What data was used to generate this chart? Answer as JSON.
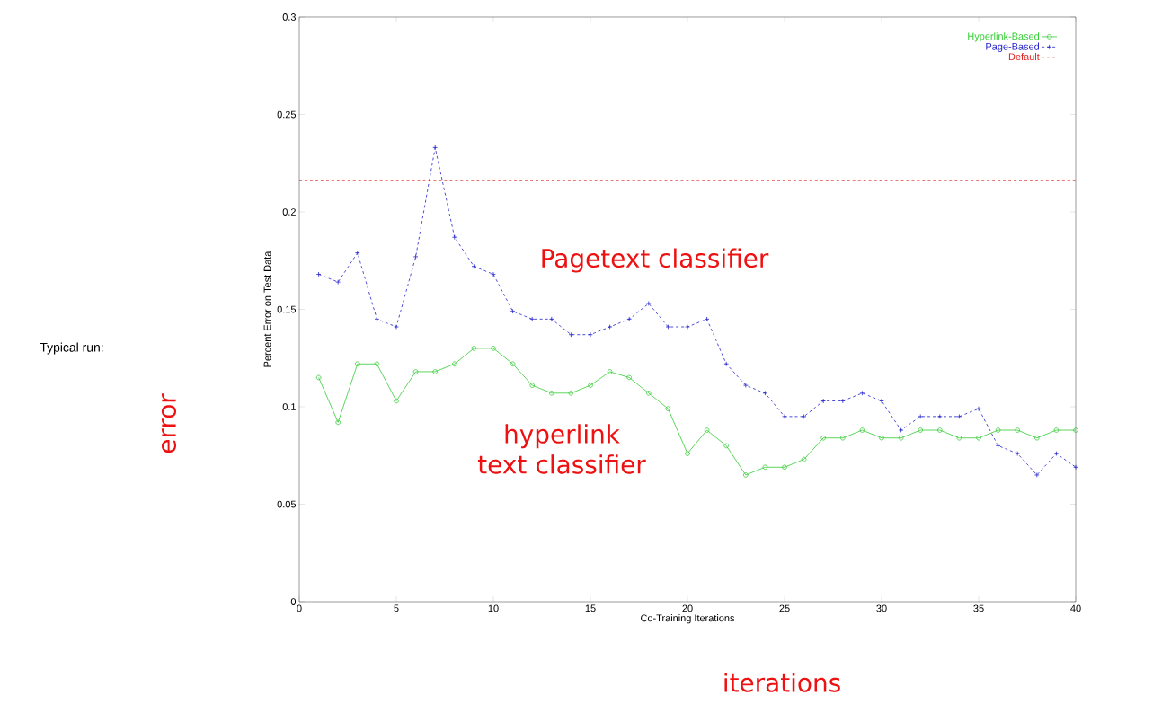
{
  "chart_data": {
    "type": "line",
    "xlabel": "Co-Training Iterations",
    "ylabel": "Percent Error on Test Data",
    "x": [
      1,
      2,
      3,
      4,
      5,
      6,
      7,
      8,
      9,
      10,
      11,
      12,
      13,
      14,
      15,
      16,
      17,
      18,
      19,
      20,
      21,
      22,
      23,
      24,
      25,
      26,
      27,
      28,
      29,
      30,
      31,
      32,
      33,
      34,
      35,
      36,
      37,
      38,
      39,
      40
    ],
    "series": [
      {
        "name": "Hyperlink-Based",
        "color": "#33cc33",
        "marker": "circle",
        "line_style": "solid",
        "values": [
          0.115,
          0.092,
          0.122,
          0.122,
          0.103,
          0.118,
          0.118,
          0.122,
          0.13,
          0.13,
          0.122,
          0.111,
          0.107,
          0.107,
          0.111,
          0.118,
          0.115,
          0.107,
          0.099,
          0.076,
          0.088,
          0.08,
          0.065,
          0.069,
          0.069,
          0.073,
          0.084,
          0.084,
          0.088,
          0.084,
          0.084,
          0.088,
          0.088,
          0.084,
          0.084,
          0.088,
          0.088,
          0.084,
          0.088,
          0.088
        ]
      },
      {
        "name": "Page-Based",
        "color": "#2222cc",
        "marker": "cross",
        "line_style": "dashed",
        "values": [
          0.168,
          0.164,
          0.179,
          0.145,
          0.141,
          0.177,
          0.233,
          0.187,
          0.172,
          0.168,
          0.149,
          0.145,
          0.145,
          0.137,
          0.137,
          0.141,
          0.145,
          0.153,
          0.141,
          0.141,
          0.145,
          0.122,
          0.111,
          0.107,
          0.095,
          0.095,
          0.103,
          0.103,
          0.107,
          0.103,
          0.088,
          0.095,
          0.095,
          0.095,
          0.099,
          0.08,
          0.076,
          0.065,
          0.076,
          0.069
        ]
      }
    ],
    "ref_lines": [
      {
        "axis": "y",
        "value": 0.216,
        "label": "Default",
        "color": "#dd2222",
        "line_style": "dashed"
      }
    ],
    "xlim": [
      0,
      40
    ],
    "ylim": [
      0,
      0.3
    ],
    "xticks": [
      0,
      5,
      10,
      15,
      20,
      25,
      30,
      35,
      40
    ],
    "yticks": [
      0,
      0.05,
      0.1,
      0.15,
      0.2,
      0.25,
      0.3
    ],
    "grid": false,
    "legend": "top right",
    "annotations": [
      "Typical run:",
      "error",
      "Pagetext classifier",
      "hyperlink text classifier",
      "iterations"
    ]
  }
}
